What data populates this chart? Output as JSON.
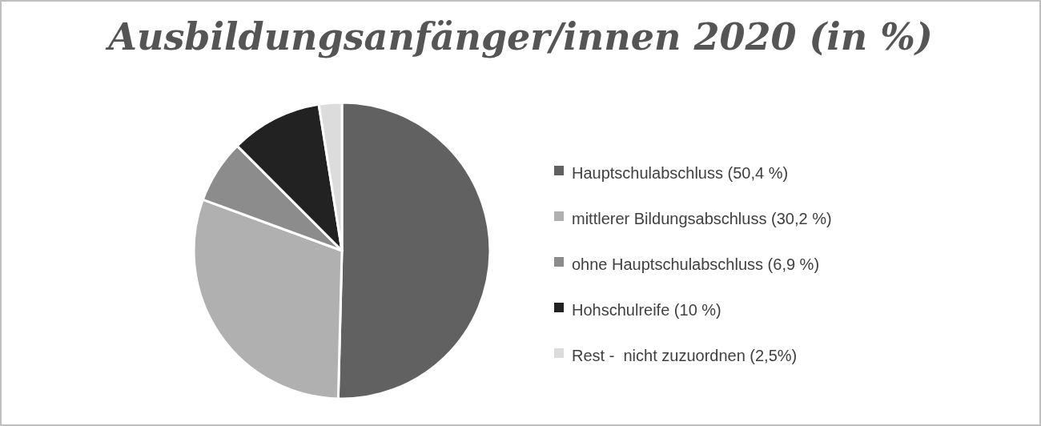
{
  "chart_data": {
    "type": "pie",
    "title": "Ausbildungsanfänger/innen 2020 (in %)",
    "categories": [
      "Hauptschulabschluss (50,4 %)",
      "mittlerer Bildungsabschluss (30,2 %)",
      "ohne Hauptschulabschluss (6,9 %)",
      "Hohschulreife (10 %)",
      "Rest -  nicht zuzuordnen (2,5%)"
    ],
    "values": [
      50.4,
      30.2,
      6.9,
      10,
      2.5
    ],
    "colors": [
      "#616161",
      "#b0b0b0",
      "#8c8c8c",
      "#222222",
      "#dcdcdc"
    ],
    "legend": "right"
  }
}
